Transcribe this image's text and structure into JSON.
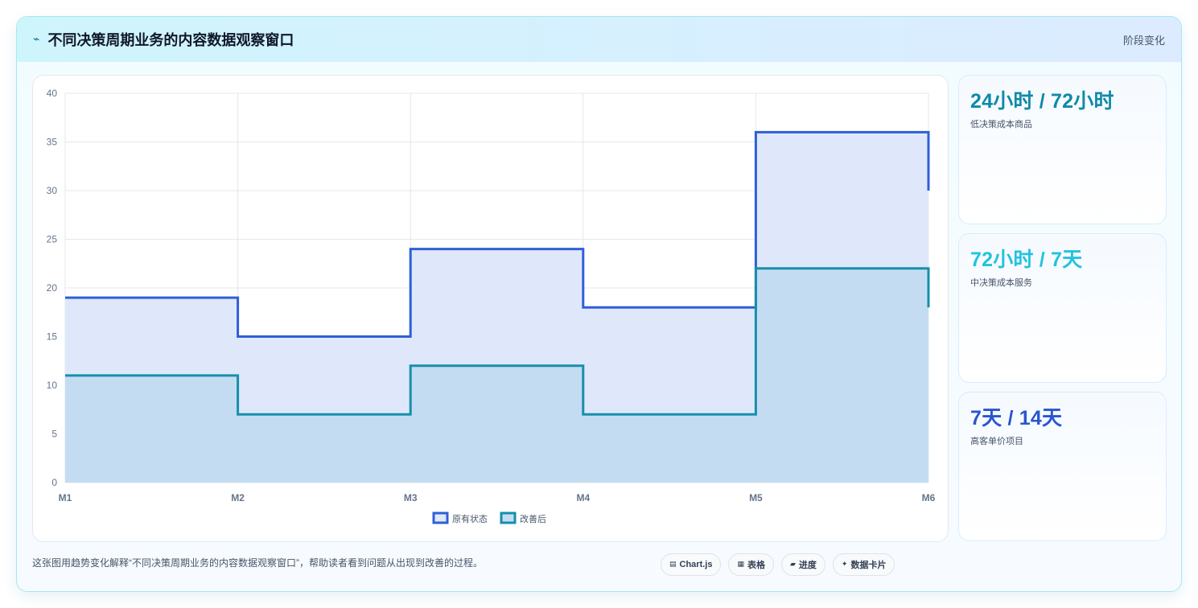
{
  "header": {
    "icon": "bolt-icon",
    "title": "不同决策周期业务的内容数据观察窗口",
    "tag": "阶段变化"
  },
  "chart_data": {
    "type": "line",
    "stepped": true,
    "x": [
      "M1",
      "M2",
      "M3",
      "M4",
      "M5",
      "M6"
    ],
    "ylim": [
      0,
      40
    ],
    "yticks": [
      0,
      5,
      10,
      15,
      20,
      25,
      30,
      35,
      40
    ],
    "grid": true,
    "legend_position": "bottom",
    "series": [
      {
        "name": "原有状态",
        "values": [
          19,
          15,
          24,
          18,
          36,
          30
        ],
        "color": "#2f5fd8",
        "fill": "#dfe8fb"
      },
      {
        "name": "改善后",
        "values": [
          11,
          7,
          12,
          7,
          22,
          18
        ],
        "color": "#168fab",
        "fill": "#c4dcf2"
      }
    ]
  },
  "stats": [
    {
      "value": "24小时 / 72小时",
      "label": "低决策成本商品",
      "color": "#0e8aa8"
    },
    {
      "value": "72小时 / 7天",
      "label": "中决策成本服务",
      "color": "#22c3dd"
    },
    {
      "value": "7天 / 14天",
      "label": "高客单价项目",
      "color": "#2a55d0"
    }
  ],
  "footer": {
    "note": "这张图用趋势变化解释“不同决策周期业务的内容数据观察窗口”，帮助读者看到问题从出现到改善的过程。"
  },
  "chips": [
    {
      "icon": "chart-icon",
      "glyph": "▤",
      "label": "Chart.js"
    },
    {
      "icon": "table-icon",
      "glyph": "▦",
      "label": "表格"
    },
    {
      "icon": "progress-icon",
      "glyph": "▰",
      "label": "进度"
    },
    {
      "icon": "card-icon",
      "glyph": "✦",
      "label": "数据卡片"
    }
  ]
}
